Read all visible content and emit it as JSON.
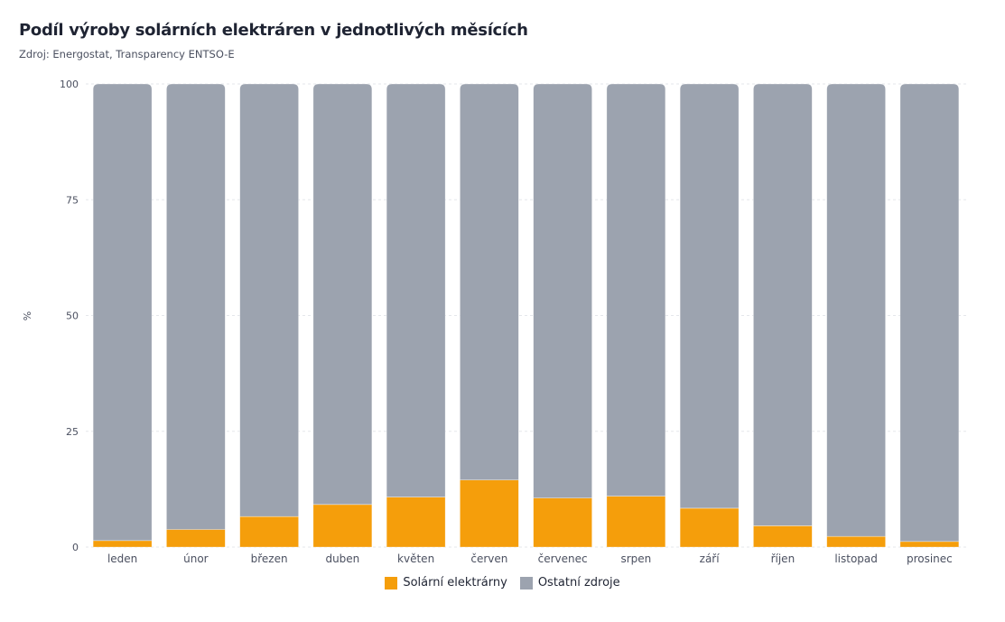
{
  "title": "Podíl výroby solárních elektráren v jednotlivých měsících",
  "subtitle": "Zdroj: Energostat, Transparency ENTSO-E",
  "colors": {
    "solar": "#f59e0b",
    "other": "#9ca3af"
  },
  "chart_data": {
    "type": "bar",
    "stacked": true,
    "ylabel": "%",
    "xlabel": "",
    "ylim": [
      0,
      100
    ],
    "yticks": [
      0,
      25,
      50,
      75,
      100
    ],
    "grid": true,
    "legend_position": "bottom",
    "categories": [
      "leden",
      "únor",
      "březen",
      "duben",
      "květen",
      "červen",
      "červenec",
      "srpen",
      "září",
      "říjen",
      "listopad",
      "prosinec"
    ],
    "series": [
      {
        "name": "Solární elektrárny",
        "values": [
          1.4,
          3.8,
          6.6,
          9.2,
          10.8,
          14.5,
          10.6,
          11.0,
          8.4,
          4.6,
          2.3,
          1.2
        ]
      },
      {
        "name": "Ostatní zdroje",
        "values": [
          98.6,
          96.2,
          93.4,
          90.8,
          89.2,
          85.5,
          89.4,
          89.0,
          91.6,
          95.4,
          97.7,
          98.8
        ]
      }
    ]
  }
}
